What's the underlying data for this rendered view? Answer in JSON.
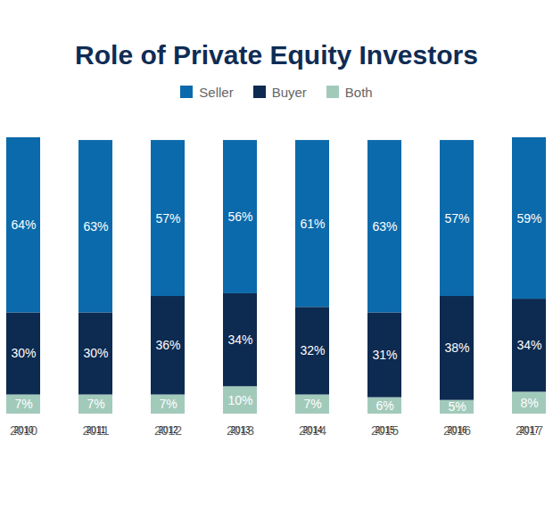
{
  "chart_data": {
    "type": "bar",
    "title": "Role of Private Equity Investors",
    "categories": [
      "2010",
      "2011",
      "2012",
      "2013",
      "2014",
      "2015",
      "2016",
      "2017"
    ],
    "series": [
      {
        "name": "Seller",
        "color": "#0b6aab",
        "values": [
          64,
          63,
          57,
          56,
          61,
          63,
          57,
          59
        ],
        "value_labels": [
          "64%",
          "63%",
          "57%",
          "56%",
          "61%",
          "63%",
          "57%",
          "59%"
        ]
      },
      {
        "name": "Buyer",
        "color": "#0d2a50",
        "values": [
          30,
          30,
          36,
          34,
          32,
          31,
          38,
          34
        ],
        "value_labels": [
          "30%",
          "30%",
          "36%",
          "34%",
          "32%",
          "31%",
          "38%",
          "34%"
        ]
      },
      {
        "name": "Both",
        "color": "#a2cabb",
        "values": [
          7,
          7,
          7,
          10,
          7,
          6,
          5,
          8
        ],
        "value_labels": [
          "7%",
          "7%",
          "7%",
          "10%",
          "7%",
          "6%",
          "5%",
          "8%"
        ]
      }
    ],
    "stacked": true,
    "data_labels": true,
    "tick_labels": "x",
    "legend": "top"
  }
}
